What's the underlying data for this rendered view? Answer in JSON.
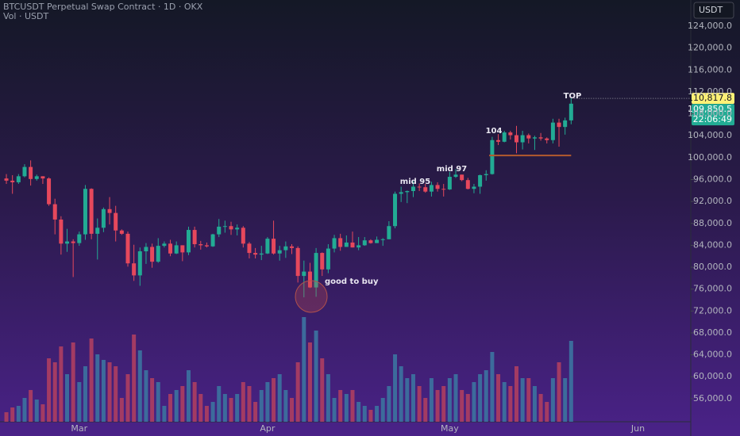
{
  "chart_data": {
    "type": "candlestick",
    "title": "BTCUSDT Perpetual Swap Contract · 1D · OKX",
    "subtitle": "Vol · USDT",
    "currency_button": "USDT",
    "colors": {
      "up": "#22ab94",
      "down": "#e6485c",
      "volume_up": "#3c6b9c",
      "volume_down": "#a33b63"
    },
    "open": [
      96200,
      95800,
      95500,
      96600,
      98300,
      96100,
      96600,
      96200,
      91500,
      88700,
      84300,
      84700,
      84400,
      86000,
      94300,
      86100,
      87200,
      90600,
      89900,
      86700,
      86100,
      80700,
      78500,
      82900,
      83700,
      81000,
      83900,
      84300,
      82500,
      84000,
      82700,
      86800,
      84200,
      84000,
      83800,
      86000,
      87400,
      87500,
      86900,
      87200,
      84300,
      82600,
      82300,
      82500,
      85200,
      82500,
      83100,
      83800,
      83500,
      78400,
      79200,
      76300,
      82600,
      79600,
      83400,
      85300,
      83700,
      84500,
      83600,
      84000,
      84900,
      84400,
      85000,
      85100,
      87500,
      93400,
      93700,
      93900,
      94700,
      94600,
      93800,
      95000,
      94300,
      94200,
      96500,
      96900,
      95900,
      94300,
      94700,
      96800,
      97000,
      103200,
      102900,
      104600,
      104100,
      102800,
      104100,
      103500,
      103700,
      103500,
      103200,
      106400,
      105600,
      106800
    ],
    "high": [
      97000,
      96800,
      97000,
      98800,
      99500,
      96900,
      96600,
      96400,
      92500,
      89300,
      87000,
      85100,
      86500,
      95000,
      94400,
      88900,
      90900,
      92800,
      91200,
      86900,
      86500,
      84100,
      83600,
      84400,
      84300,
      85300,
      84700,
      85000,
      84700,
      84000,
      87400,
      87400,
      84800,
      84500,
      86100,
      88800,
      88500,
      88300,
      87800,
      87500,
      84600,
      83500,
      83900,
      85500,
      88500,
      83900,
      84700,
      84200,
      83800,
      81200,
      80800,
      83500,
      82700,
      84200,
      85900,
      86100,
      85800,
      86500,
      85500,
      85500,
      85100,
      85600,
      85300,
      88400,
      93800,
      94700,
      94000,
      95700,
      95300,
      95200,
      95600,
      95500,
      95200,
      97400,
      97900,
      96900,
      96300,
      95200,
      96900,
      97700,
      103800,
      104300,
      104900,
      104900,
      105800,
      104900,
      104400,
      104000,
      104500,
      103700,
      107100,
      107100,
      107300,
      110817.8
    ],
    "low": [
      95200,
      93400,
      95200,
      96400,
      94900,
      95800,
      95200,
      91200,
      86000,
      82300,
      82800,
      78200,
      83900,
      85000,
      85100,
      81400,
      86400,
      87800,
      84700,
      85900,
      80100,
      77500,
      76600,
      80600,
      79900,
      80800,
      83600,
      82000,
      82400,
      81100,
      82200,
      83600,
      83200,
      83600,
      83700,
      85500,
      86300,
      85900,
      85800,
      83600,
      81600,
      81600,
      81300,
      82400,
      82300,
      81200,
      81700,
      82400,
      77200,
      74500,
      76200,
      74600,
      78400,
      78900,
      82700,
      83000,
      83700,
      83600,
      83100,
      83900,
      84300,
      84400,
      83900,
      85100,
      87100,
      91900,
      91700,
      92800,
      93900,
      93600,
      92900,
      93800,
      92900,
      94100,
      96300,
      95700,
      94200,
      93500,
      93400,
      95800,
      96900,
      102300,
      102800,
      103300,
      100800,
      101500,
      102600,
      101400,
      103100,
      102600,
      102600,
      102000,
      104200,
      106100
    ],
    "close": [
      95800,
      95500,
      96600,
      98300,
      96100,
      96600,
      96200,
      91500,
      88700,
      84300,
      84700,
      84400,
      86000,
      94300,
      86100,
      87200,
      90600,
      89900,
      86700,
      86100,
      80700,
      78500,
      82900,
      83700,
      81000,
      83900,
      84300,
      82500,
      84000,
      82700,
      86800,
      84200,
      84000,
      83800,
      86000,
      87400,
      87500,
      86900,
      87200,
      84300,
      82600,
      82300,
      82500,
      85200,
      82500,
      83100,
      83800,
      83500,
      78400,
      79200,
      76300,
      82600,
      79600,
      83400,
      85300,
      83700,
      84500,
      83600,
      84000,
      84900,
      84400,
      85000,
      85100,
      87500,
      93400,
      93700,
      93900,
      94700,
      94600,
      93800,
      95000,
      94300,
      94200,
      96500,
      96900,
      95900,
      94300,
      94700,
      96800,
      97000,
      103200,
      102900,
      104600,
      104100,
      102800,
      104100,
      103500,
      103700,
      103500,
      103200,
      106400,
      105600,
      106800,
      109850.5
    ],
    "volume": [
      12,
      18,
      20,
      30,
      40,
      28,
      22,
      80,
      75,
      95,
      60,
      100,
      50,
      70,
      105,
      85,
      78,
      75,
      70,
      30,
      60,
      110,
      90,
      65,
      55,
      50,
      20,
      35,
      40,
      45,
      65,
      50,
      35,
      20,
      25,
      45,
      35,
      30,
      35,
      50,
      45,
      25,
      40,
      50,
      55,
      60,
      40,
      30,
      75,
      132,
      100,
      115,
      80,
      60,
      30,
      40,
      35,
      40,
      25,
      20,
      15,
      20,
      30,
      45,
      85,
      70,
      55,
      60,
      45,
      30,
      55,
      40,
      45,
      55,
      60,
      40,
      35,
      50,
      60,
      65,
      88,
      60,
      50,
      45,
      70,
      55,
      55,
      45,
      35,
      25,
      55,
      75,
      55,
      102
    ],
    "xlim": [
      -1.05,
      112.7
    ],
    "xticks": [
      {
        "value": 12,
        "label": "Mar"
      },
      {
        "value": 43,
        "label": "Apr"
      },
      {
        "value": 73,
        "label": "May"
      },
      {
        "value": 104,
        "label": "Jun"
      }
    ],
    "ylim": [
      49180,
      128780
    ],
    "yticks": [
      {
        "value": 56000,
        "label": "56,000.0"
      },
      {
        "value": 60000,
        "label": "60,000.0"
      },
      {
        "value": 64000,
        "label": "64,000.0"
      },
      {
        "value": 68000,
        "label": "68,000.0"
      },
      {
        "value": 72000,
        "label": "72,000.0"
      },
      {
        "value": 76000,
        "label": "76,000.0"
      },
      {
        "value": 80000,
        "label": "80,000.0"
      },
      {
        "value": 84000,
        "label": "84,000.0"
      },
      {
        "value": 88000,
        "label": "88,000.0"
      },
      {
        "value": 92000,
        "label": "92,000.0"
      },
      {
        "value": 96000,
        "label": "96,000.0"
      },
      {
        "value": 100000,
        "label": "100,000.0"
      },
      {
        "value": 104000,
        "label": "104,000.0"
      },
      {
        "value": 108000,
        "label": "108,000.0"
      },
      {
        "value": 112000,
        "label": "112,000.0"
      },
      {
        "value": 116000,
        "label": "116,000.0"
      },
      {
        "value": 120000,
        "label": "120,000.0"
      },
      {
        "value": 124000,
        "label": "124,000.0"
      }
    ],
    "volume_lim": [
      0,
      140
    ],
    "high_marker": {
      "value": 110817.8,
      "label": "110,817.8"
    },
    "last_price": {
      "value": 109850.5,
      "label": "109,850.5"
    },
    "countdown": "22:06:49",
    "support_level": 100400,
    "annotations": [
      "TOP",
      "104",
      "mid 97",
      "mid 95",
      "good to buy"
    ]
  }
}
